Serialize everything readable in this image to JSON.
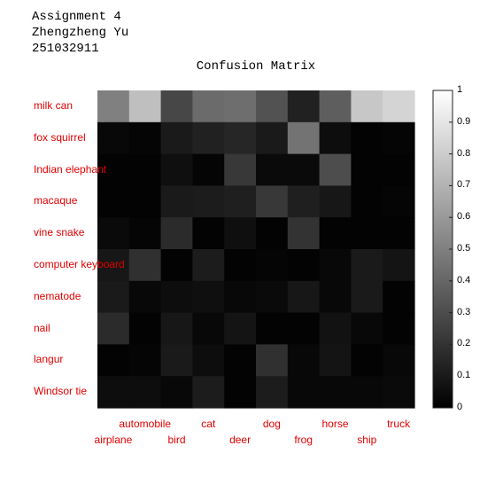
{
  "header": {
    "line1": "Assignment 4",
    "line2": "Zhengzheng Yu",
    "line3": "251032911"
  },
  "chart_data": {
    "type": "heatmap",
    "title": "Confusion Matrix",
    "colormap": "gray",
    "label_color": "#e00000",
    "rows": [
      "milk can",
      "fox squirrel",
      "Indian elephant",
      "macaque",
      "vine snake",
      "computer keyboard",
      "nematode",
      "nail",
      "langur",
      "Windsor tie"
    ],
    "columns": [
      "airplane",
      "automobile",
      "bird",
      "cat",
      "deer",
      "dog",
      "frog",
      "horse",
      "ship",
      "truck"
    ],
    "values": [
      [
        0.5,
        0.75,
        0.28,
        0.42,
        0.43,
        0.32,
        0.13,
        0.37,
        0.78,
        0.83
      ],
      [
        0.03,
        0.02,
        0.1,
        0.13,
        0.15,
        0.1,
        0.45,
        0.05,
        0.01,
        0.02
      ],
      [
        0.01,
        0.01,
        0.06,
        0.02,
        0.22,
        0.04,
        0.04,
        0.3,
        0.01,
        0.01
      ],
      [
        0.01,
        0.01,
        0.1,
        0.11,
        0.12,
        0.22,
        0.12,
        0.09,
        0.01,
        0.02
      ],
      [
        0.04,
        0.02,
        0.17,
        0.01,
        0.06,
        0.01,
        0.2,
        0.01,
        0.01,
        0.01
      ],
      [
        0.09,
        0.19,
        0.01,
        0.11,
        0.01,
        0.02,
        0.01,
        0.03,
        0.1,
        0.08
      ],
      [
        0.1,
        0.03,
        0.05,
        0.06,
        0.03,
        0.04,
        0.09,
        0.03,
        0.1,
        0.01
      ],
      [
        0.17,
        0.01,
        0.09,
        0.03,
        0.08,
        0.01,
        0.01,
        0.07,
        0.03,
        0.01
      ],
      [
        0.01,
        0.02,
        0.1,
        0.05,
        0.01,
        0.19,
        0.03,
        0.08,
        0.01,
        0.03
      ],
      [
        0.05,
        0.05,
        0.03,
        0.11,
        0.01,
        0.11,
        0.03,
        0.03,
        0.03,
        0.04
      ]
    ],
    "colorbar": {
      "min": 0,
      "max": 1,
      "ticks": [
        "0",
        "0.1",
        "0.2",
        "0.3",
        "0.4",
        "0.5",
        "0.6",
        "0.7",
        "0.8",
        "0.9",
        "1"
      ]
    }
  }
}
